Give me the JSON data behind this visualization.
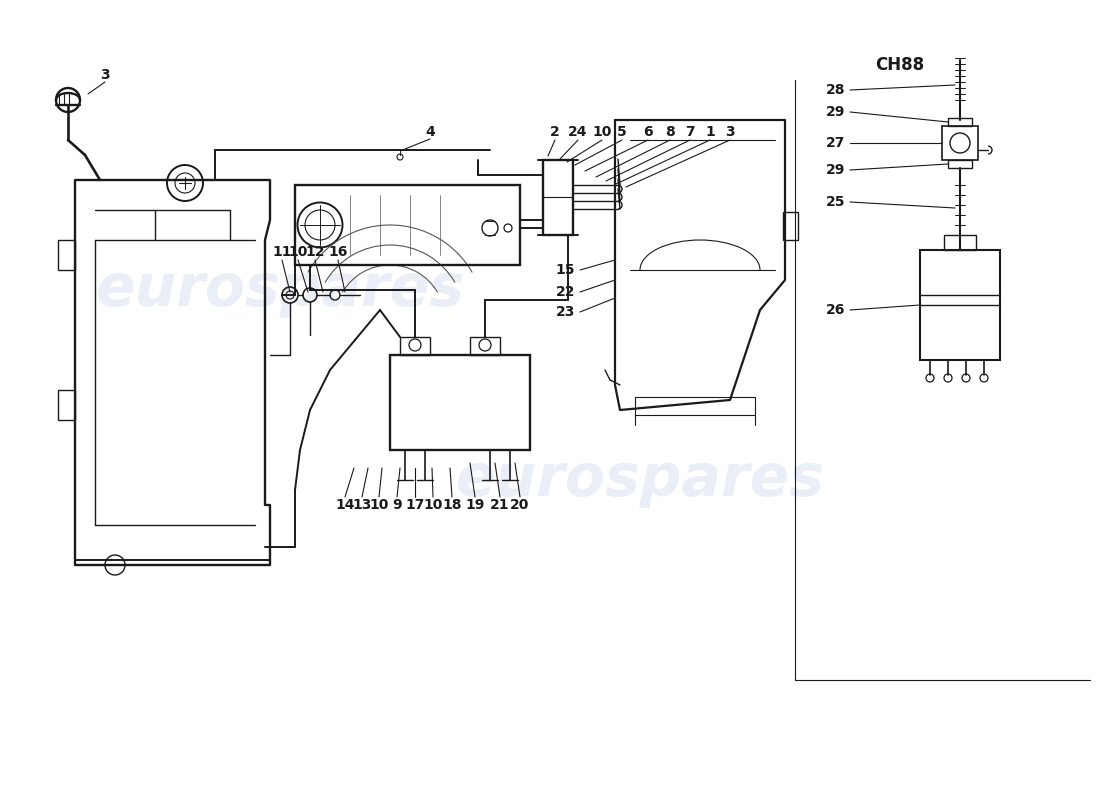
{
  "background_color": "#ffffff",
  "line_color": "#1a1a1a",
  "line_width": 1.4,
  "label_fontsize": 9.5,
  "label_fontsize_bold": 10,
  "watermark_color": "#c8d4e8",
  "watermark_alpha": 0.38,
  "ch88_label": "CH88",
  "figsize": [
    11.0,
    8.0
  ],
  "dpi": 100
}
